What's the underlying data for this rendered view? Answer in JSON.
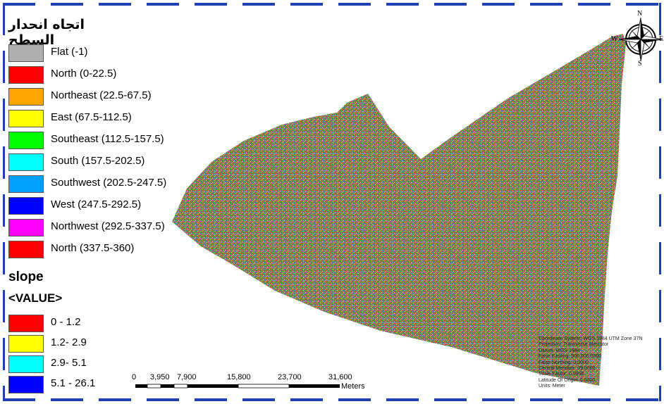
{
  "legend": {
    "aspect_title": "اتجاه انحدار السطح",
    "aspect_classes": [
      {
        "label": "Flat (-1)",
        "color": "#b0b0b0"
      },
      {
        "label": "North (0-22.5)",
        "color": "#ff0000"
      },
      {
        "label": "Northeast (22.5-67.5)",
        "color": "#ffa500"
      },
      {
        "label": "East (67.5-112.5)",
        "color": "#ffff00"
      },
      {
        "label": "Southeast (112.5-157.5)",
        "color": "#00ff00"
      },
      {
        "label": "South (157.5-202.5)",
        "color": "#00ffff"
      },
      {
        "label": "Southwest (202.5-247.5)",
        "color": "#00a0ff"
      },
      {
        "label": "West (247.5-292.5)",
        "color": "#0000ff"
      },
      {
        "label": "Northwest (292.5-337.5)",
        "color": "#ff00ff"
      },
      {
        "label": "North (337.5-360)",
        "color": "#ff0000"
      }
    ],
    "slope_title": "slope",
    "slope_field": "<VALUE>",
    "slope_classes": [
      {
        "label": "0 - 1.2",
        "color": "#ff0000"
      },
      {
        "label": "1.2- 2.9",
        "color": "#ffff00"
      },
      {
        "label": "2.9- 5.1",
        "color": "#00ffff"
      },
      {
        "label": "5.1 - 26.1",
        "color": "#0000ff"
      }
    ]
  },
  "north_arrow": {
    "n": "N",
    "s": "S",
    "e": "E",
    "w": "W"
  },
  "scale_bar": {
    "ticks": [
      "0",
      "3,950",
      "7,900",
      "15,800",
      "23,700",
      "31,600"
    ],
    "units": "Meters"
  },
  "coordinate_info": [
    "Coordinate System: WGS 1984 UTM Zone 37N",
    "Projection: Transverse Mercator",
    "Datum: WGS 1984",
    "False Easting: 500,000.0000",
    "False Northing: 0.0000",
    "Central Meridian: 39.0000",
    "Scale Factor: 0.9996",
    "Latitude Of Origin: 0.0000",
    "Units: Meter"
  ],
  "colors": {
    "frame": "#1f3fb3",
    "map_base": "#7d7d62"
  }
}
